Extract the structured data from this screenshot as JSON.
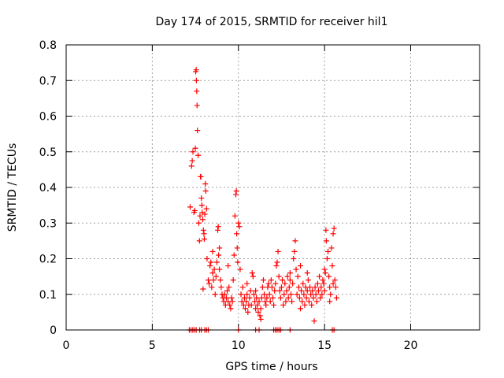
{
  "chart_data": {
    "type": "scatter",
    "title": "Day 174 of 2015, SRMTID for receiver hil1",
    "xlabel": "GPS time / hours",
    "ylabel": "SRMTID / TECUs",
    "xlim": [
      0,
      24
    ],
    "ylim": [
      0,
      0.8
    ],
    "xticks": [
      0,
      5,
      10,
      15,
      20
    ],
    "xtick_labels": [
      "0",
      "5",
      "10",
      "15",
      "20"
    ],
    "yticks": [
      0,
      0.1,
      0.2,
      0.3,
      0.4,
      0.5,
      0.6,
      0.7,
      0.8
    ],
    "ytick_labels": [
      "0",
      "0.1",
      "0.2",
      "0.3",
      "0.4",
      "0.5",
      "0.6",
      "0.7",
      "0.8"
    ],
    "grid": true,
    "marker": "+",
    "series": [
      {
        "name": "hil1",
        "color": "#ff0000",
        "points": [
          [
            7.2,
            0.345
          ],
          [
            7.28,
            0.46
          ],
          [
            7.32,
            0.475
          ],
          [
            7.36,
            0.5
          ],
          [
            7.42,
            0.33
          ],
          [
            7.47,
            0.335
          ],
          [
            7.5,
            0.51
          ],
          [
            7.52,
            0.725
          ],
          [
            7.55,
            0.73
          ],
          [
            7.56,
            0.7
          ],
          [
            7.58,
            0.67
          ],
          [
            7.6,
            0.63
          ],
          [
            7.62,
            0.56
          ],
          [
            7.66,
            0.49
          ],
          [
            7.7,
            0.3
          ],
          [
            7.74,
            0.25
          ],
          [
            7.77,
            0.32
          ],
          [
            7.8,
            0.43
          ],
          [
            7.82,
            0.43
          ],
          [
            7.85,
            0.37
          ],
          [
            7.88,
            0.35
          ],
          [
            7.9,
            0.33
          ],
          [
            7.93,
            0.31
          ],
          [
            7.97,
            0.28
          ],
          [
            8.0,
            0.27
          ],
          [
            8.02,
            0.255
          ],
          [
            8.05,
            0.325
          ],
          [
            8.08,
            0.41
          ],
          [
            8.1,
            0.39
          ],
          [
            8.15,
            0.34
          ],
          [
            7.95,
            0.115
          ],
          [
            8.18,
            0.2
          ],
          [
            8.25,
            0.14
          ],
          [
            8.3,
            0.13
          ],
          [
            8.35,
            0.18
          ],
          [
            8.4,
            0.19
          ],
          [
            8.45,
            0.12
          ],
          [
            8.5,
            0.16
          ],
          [
            8.55,
            0.14
          ],
          [
            8.6,
            0.17
          ],
          [
            8.65,
            0.1
          ],
          [
            8.7,
            0.15
          ],
          [
            8.75,
            0.19
          ],
          [
            8.8,
            0.28
          ],
          [
            8.83,
            0.29
          ],
          [
            8.85,
            0.21
          ],
          [
            8.9,
            0.17
          ],
          [
            8.95,
            0.14
          ],
          [
            9.0,
            0.12
          ],
          [
            9.05,
            0.1
          ],
          [
            9.1,
            0.09
          ],
          [
            9.15,
            0.08
          ],
          [
            9.2,
            0.1
          ],
          [
            9.25,
            0.07
          ],
          [
            9.3,
            0.09
          ],
          [
            9.35,
            0.11
          ],
          [
            9.4,
            0.08
          ],
          [
            9.45,
            0.12
          ],
          [
            9.5,
            0.07
          ],
          [
            9.55,
            0.06
          ],
          [
            9.6,
            0.09
          ],
          [
            9.65,
            0.08
          ],
          [
            9.7,
            0.14
          ],
          [
            9.75,
            0.21
          ],
          [
            9.8,
            0.32
          ],
          [
            9.85,
            0.38
          ],
          [
            9.88,
            0.39
          ],
          [
            9.9,
            0.27
          ],
          [
            9.93,
            0.23
          ],
          [
            9.96,
            0.19
          ],
          [
            10.0,
            0.3
          ],
          [
            10.05,
            0.29
          ],
          [
            10.1,
            0.17
          ],
          [
            8.5,
            0.22
          ],
          [
            8.9,
            0.23
          ],
          [
            9.4,
            0.18
          ],
          [
            10.15,
            0.1
          ],
          [
            10.2,
            0.08
          ],
          [
            10.25,
            0.12
          ],
          [
            10.3,
            0.07
          ],
          [
            10.35,
            0.09
          ],
          [
            10.4,
            0.06
          ],
          [
            10.45,
            0.08
          ],
          [
            10.5,
            0.1
          ],
          [
            10.55,
            0.05
          ],
          [
            10.6,
            0.07
          ],
          [
            10.65,
            0.09
          ],
          [
            10.7,
            0.11
          ],
          [
            10.75,
            0.07
          ],
          [
            10.8,
            0.16
          ],
          [
            10.85,
            0.15
          ],
          [
            10.9,
            0.1
          ],
          [
            10.95,
            0.08
          ],
          [
            11.0,
            0.06
          ],
          [
            11.05,
            0.09
          ],
          [
            11.1,
            0.07
          ],
          [
            11.15,
            0.05
          ],
          [
            11.2,
            0.08
          ],
          [
            11.25,
            0.04
          ],
          [
            11.3,
            0.06
          ],
          [
            11.35,
            0.09
          ],
          [
            11.4,
            0.12
          ],
          [
            11.45,
            0.14
          ],
          [
            11.5,
            0.1
          ],
          [
            11.55,
            0.08
          ],
          [
            11.6,
            0.07
          ],
          [
            11.65,
            0.09
          ],
          [
            11.7,
            0.12
          ],
          [
            11.75,
            0.13
          ],
          [
            11.8,
            0.1
          ],
          [
            11.85,
            0.08
          ],
          [
            11.9,
            0.14
          ],
          [
            11.95,
            0.12
          ],
          [
            12.0,
            0.09
          ],
          [
            12.05,
            0.07
          ],
          [
            12.1,
            0.11
          ],
          [
            12.15,
            0.13
          ],
          [
            12.2,
            0.18
          ],
          [
            12.25,
            0.19
          ],
          [
            12.3,
            0.22
          ],
          [
            12.35,
            0.15
          ],
          [
            12.4,
            0.11
          ],
          [
            10.5,
            0.13
          ],
          [
            11.0,
            0.11
          ],
          [
            11.3,
            0.03
          ],
          [
            12.45,
            0.09
          ],
          [
            12.5,
            0.12
          ],
          [
            12.55,
            0.14
          ],
          [
            12.6,
            0.07
          ],
          [
            12.65,
            0.1
          ],
          [
            12.7,
            0.13
          ],
          [
            12.75,
            0.08
          ],
          [
            12.8,
            0.11
          ],
          [
            12.85,
            0.15
          ],
          [
            12.9,
            0.09
          ],
          [
            12.95,
            0.12
          ],
          [
            13.0,
            0.14
          ],
          [
            13.05,
            0.1
          ],
          [
            13.1,
            0.08
          ],
          [
            13.15,
            0.13
          ],
          [
            13.2,
            0.2
          ],
          [
            13.25,
            0.22
          ],
          [
            13.3,
            0.25
          ],
          [
            13.35,
            0.17
          ],
          [
            13.4,
            0.1
          ],
          [
            13.45,
            0.15
          ],
          [
            13.5,
            0.12
          ],
          [
            13.55,
            0.09
          ],
          [
            13.6,
            0.06
          ],
          [
            13.65,
            0.11
          ],
          [
            13.7,
            0.08
          ],
          [
            13.75,
            0.13
          ],
          [
            13.8,
            0.1
          ],
          [
            13.85,
            0.07
          ],
          [
            13.9,
            0.12
          ],
          [
            13.95,
            0.09
          ],
          [
            14.0,
            0.11
          ],
          [
            14.05,
            0.14
          ],
          [
            14.1,
            0.08
          ],
          [
            14.15,
            0.12
          ],
          [
            14.2,
            0.1
          ],
          [
            14.25,
            0.07
          ],
          [
            14.3,
            0.11
          ],
          [
            14.35,
            0.09
          ],
          [
            14.4,
            0.025
          ],
          [
            14.45,
            0.12
          ],
          [
            14.5,
            0.1
          ],
          [
            14.55,
            0.08
          ],
          [
            14.6,
            0.13
          ],
          [
            14.65,
            0.11
          ],
          [
            14.7,
            0.15
          ],
          [
            14.75,
            0.09
          ],
          [
            14.8,
            0.12
          ],
          [
            14.85,
            0.1
          ],
          [
            13.0,
            0.16
          ],
          [
            13.6,
            0.18
          ],
          [
            14.0,
            0.16
          ],
          [
            14.9,
            0.14
          ],
          [
            14.95,
            0.13
          ],
          [
            15.0,
            0.17
          ],
          [
            15.05,
            0.16
          ],
          [
            15.08,
            0.28
          ],
          [
            15.1,
            0.25
          ],
          [
            15.15,
            0.2
          ],
          [
            15.2,
            0.22
          ],
          [
            15.25,
            0.15
          ],
          [
            15.3,
            0.12
          ],
          [
            15.35,
            0.1
          ],
          [
            15.4,
            0.23
          ],
          [
            15.45,
            0.18
          ],
          [
            15.5,
            0.27
          ],
          [
            15.55,
            0.285
          ],
          [
            15.6,
            0.14
          ],
          [
            15.65,
            0.12
          ],
          [
            15.7,
            0.09
          ],
          [
            15.0,
            0.11
          ],
          [
            15.3,
            0.08
          ],
          [
            15.5,
            0.13
          ],
          [
            7.15,
            0
          ],
          [
            7.25,
            0
          ],
          [
            7.35,
            0
          ],
          [
            7.45,
            0
          ],
          [
            7.55,
            0
          ],
          [
            7.75,
            0
          ],
          [
            7.85,
            0
          ],
          [
            8.05,
            0
          ],
          [
            8.15,
            0
          ],
          [
            8.25,
            0
          ],
          [
            10.0,
            0
          ],
          [
            11.0,
            0
          ],
          [
            11.2,
            0
          ],
          [
            12.05,
            0
          ],
          [
            12.15,
            0
          ],
          [
            12.25,
            0
          ],
          [
            12.35,
            0
          ],
          [
            12.45,
            0
          ],
          [
            13.0,
            0
          ],
          [
            15.45,
            0
          ],
          [
            15.55,
            0
          ]
        ]
      }
    ]
  }
}
